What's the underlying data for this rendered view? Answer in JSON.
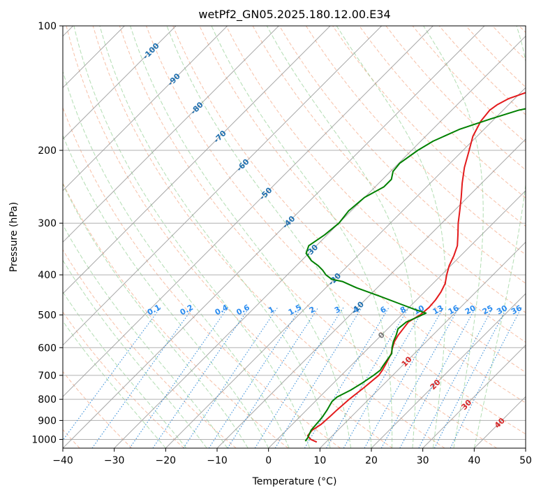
{
  "chart_data": {
    "type": "line",
    "diagram": "skew-t log-p",
    "title": "wetPf2_GN05.2025.180.12.00.E34",
    "xlabel": "Temperature (°C)",
    "ylabel": "Pressure (hPa)",
    "xlim": [
      -40,
      50
    ],
    "ylim": [
      1050,
      100
    ],
    "y_scale": "log",
    "grid": true,
    "x_ticks": [
      "−40",
      "−30",
      "−20",
      "−10",
      "0",
      "10",
      "20",
      "30",
      "40",
      "50"
    ],
    "y_ticks": [
      "1000",
      "900",
      "800",
      "700",
      "600",
      "500",
      "400",
      "300",
      "200",
      "100"
    ],
    "colors": {
      "temperature": "#e31a1c",
      "dewpoint": "#008000",
      "dry_adiabat": "#f4a582",
      "moist_adiabat": "#91cf91",
      "mixing_ratio": "#3a8fd9",
      "isotherm": "#999999",
      "isotherm_label": "#1f6fae",
      "mixing_label": "#2a8cf0",
      "warm_label": "#d62728",
      "zero_label": "#777777"
    },
    "isotherm_labels": [
      "-100",
      "-90",
      "-80",
      "-70",
      "-60",
      "-50",
      "-40",
      "-30",
      "-20",
      "-10",
      "0",
      "10",
      "20",
      "30",
      "40"
    ],
    "mixing_ratio_labels": [
      "0.1",
      "0.2",
      "0.4",
      "0.6",
      "1",
      "1.5",
      "2",
      "3",
      "4",
      "6",
      "8",
      "10",
      "13",
      "16",
      "20",
      "25",
      "30",
      "36"
    ],
    "series": [
      {
        "key": "temperature",
        "points": [
          [
            1015,
            8.2
          ],
          [
            1000,
            6.5
          ],
          [
            980,
            5.2
          ],
          [
            950,
            5.0
          ],
          [
            920,
            5.6
          ],
          [
            880,
            5.8
          ],
          [
            850,
            5.9
          ],
          [
            800,
            6.2
          ],
          [
            750,
            6.8
          ],
          [
            700,
            7.3
          ],
          [
            680,
            7.0
          ],
          [
            650,
            6.3
          ],
          [
            620,
            5.5
          ],
          [
            600,
            4.6
          ],
          [
            580,
            3.8
          ],
          [
            560,
            3.3
          ],
          [
            540,
            3.0
          ],
          [
            520,
            2.7
          ],
          [
            500,
            3.6
          ],
          [
            480,
            3.9
          ],
          [
            460,
            3.7
          ],
          [
            440,
            3.2
          ],
          [
            420,
            2.4
          ],
          [
            400,
            1.0
          ],
          [
            380,
            -0.3
          ],
          [
            360,
            -1.3
          ],
          [
            340,
            -2.6
          ],
          [
            320,
            -4.6
          ],
          [
            300,
            -6.8
          ],
          [
            280,
            -8.9
          ],
          [
            260,
            -11.2
          ],
          [
            240,
            -13.8
          ],
          [
            220,
            -16.4
          ],
          [
            200,
            -18.8
          ],
          [
            185,
            -20.8
          ],
          [
            170,
            -22.2
          ],
          [
            160,
            -22.6
          ],
          [
            155,
            -22.2
          ],
          [
            150,
            -21.2
          ],
          [
            145,
            -19.0
          ],
          [
            140,
            -16.0
          ],
          [
            135,
            -13.5
          ],
          [
            130,
            -12.0
          ],
          [
            125,
            -10.5
          ],
          [
            120,
            -9.0
          ],
          [
            115,
            -7.6
          ],
          [
            110,
            -6.8
          ],
          [
            105,
            -6.2
          ],
          [
            100,
            -5.6
          ]
        ]
      },
      {
        "key": "dewpoint",
        "points": [
          [
            1010,
            5.8
          ],
          [
            990,
            5.6
          ],
          [
            950,
            4.8
          ],
          [
            910,
            4.6
          ],
          [
            880,
            4.4
          ],
          [
            850,
            4.0
          ],
          [
            810,
            3.3
          ],
          [
            790,
            3.4
          ],
          [
            760,
            4.7
          ],
          [
            730,
            5.6
          ],
          [
            700,
            6.3
          ],
          [
            680,
            6.6
          ],
          [
            665,
            6.3
          ],
          [
            640,
            5.9
          ],
          [
            620,
            5.6
          ],
          [
            600,
            4.5
          ],
          [
            580,
            3.6
          ],
          [
            560,
            2.9
          ],
          [
            540,
            2.0
          ],
          [
            520,
            2.3
          ],
          [
            505,
            3.6
          ],
          [
            495,
            4.4
          ],
          [
            485,
            1.5
          ],
          [
            470,
            -2.5
          ],
          [
            450,
            -8.0
          ],
          [
            430,
            -14.0
          ],
          [
            415,
            -18.0
          ],
          [
            410,
            -20.5
          ],
          [
            400,
            -22.5
          ],
          [
            390,
            -24.0
          ],
          [
            380,
            -25.8
          ],
          [
            370,
            -28.0
          ],
          [
            355,
            -30.5
          ],
          [
            340,
            -31.5
          ],
          [
            320,
            -30.5
          ],
          [
            300,
            -30.0
          ],
          [
            280,
            -30.5
          ],
          [
            260,
            -30.0
          ],
          [
            245,
            -28.3
          ],
          [
            235,
            -28.3
          ],
          [
            225,
            -29.5
          ],
          [
            215,
            -29.8
          ],
          [
            200,
            -28.8
          ],
          [
            190,
            -27.6
          ],
          [
            178,
            -24.8
          ],
          [
            168,
            -20.8
          ],
          [
            160,
            -17.0
          ],
          [
            155,
            -12.8
          ],
          [
            150,
            -9.2
          ],
          [
            145,
            -7.6
          ],
          [
            140,
            -7.0
          ],
          [
            135,
            -7.3
          ],
          [
            128,
            -7.5
          ],
          [
            120,
            -7.2
          ],
          [
            112,
            -6.2
          ],
          [
            106,
            -5.0
          ],
          [
            100,
            -3.8
          ]
        ]
      }
    ]
  }
}
